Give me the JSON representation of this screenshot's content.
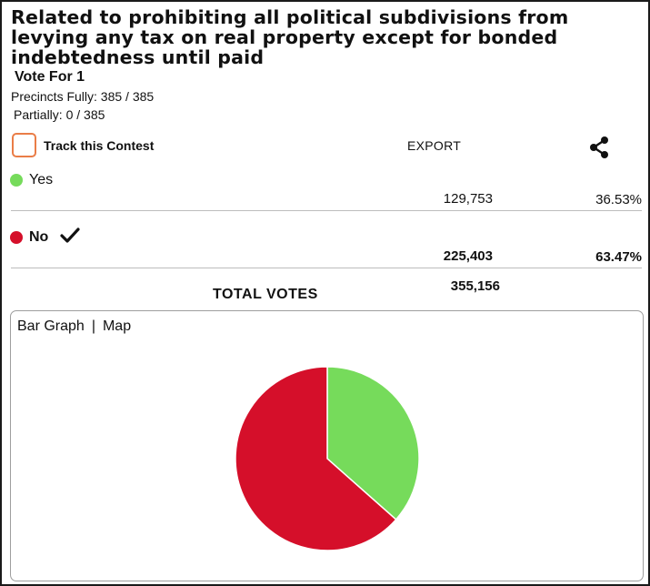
{
  "contest": {
    "title_lines": [
      "Related to prohibiting all political subdivisions from",
      "levying any tax on real property except for bonded",
      "indebtedness until paid"
    ],
    "vote_for": "Vote For 1",
    "precincts_fully": "Precincts Fully: 385 / 385",
    "precincts_partially": "Partially: 0 / 385"
  },
  "toolbar": {
    "track_label": "Track this Contest",
    "export_label": "EXPORT",
    "share_icon": "share-icon"
  },
  "candidates": [
    {
      "name": "Yes",
      "votes": "129,753",
      "percent": "36.53%",
      "color": "#76db5b",
      "winner": false
    },
    {
      "name": "No",
      "votes": "225,403",
      "percent": "63.47%",
      "color": "#d50f2a",
      "winner": true
    }
  ],
  "totals": {
    "label": "TOTAL VOTES",
    "value": "355,156"
  },
  "chart_tabs": {
    "bar_graph": "Bar Graph",
    "separator": "|",
    "map": "Map"
  },
  "chart_data": {
    "type": "pie",
    "categories": [
      "Yes",
      "No"
    ],
    "values": [
      129753,
      225403
    ],
    "percent": [
      36.53,
      63.47
    ],
    "colors": [
      "#76db5b",
      "#d50f2a"
    ],
    "start": "12 o'clock, clockwise",
    "legend": "none"
  }
}
